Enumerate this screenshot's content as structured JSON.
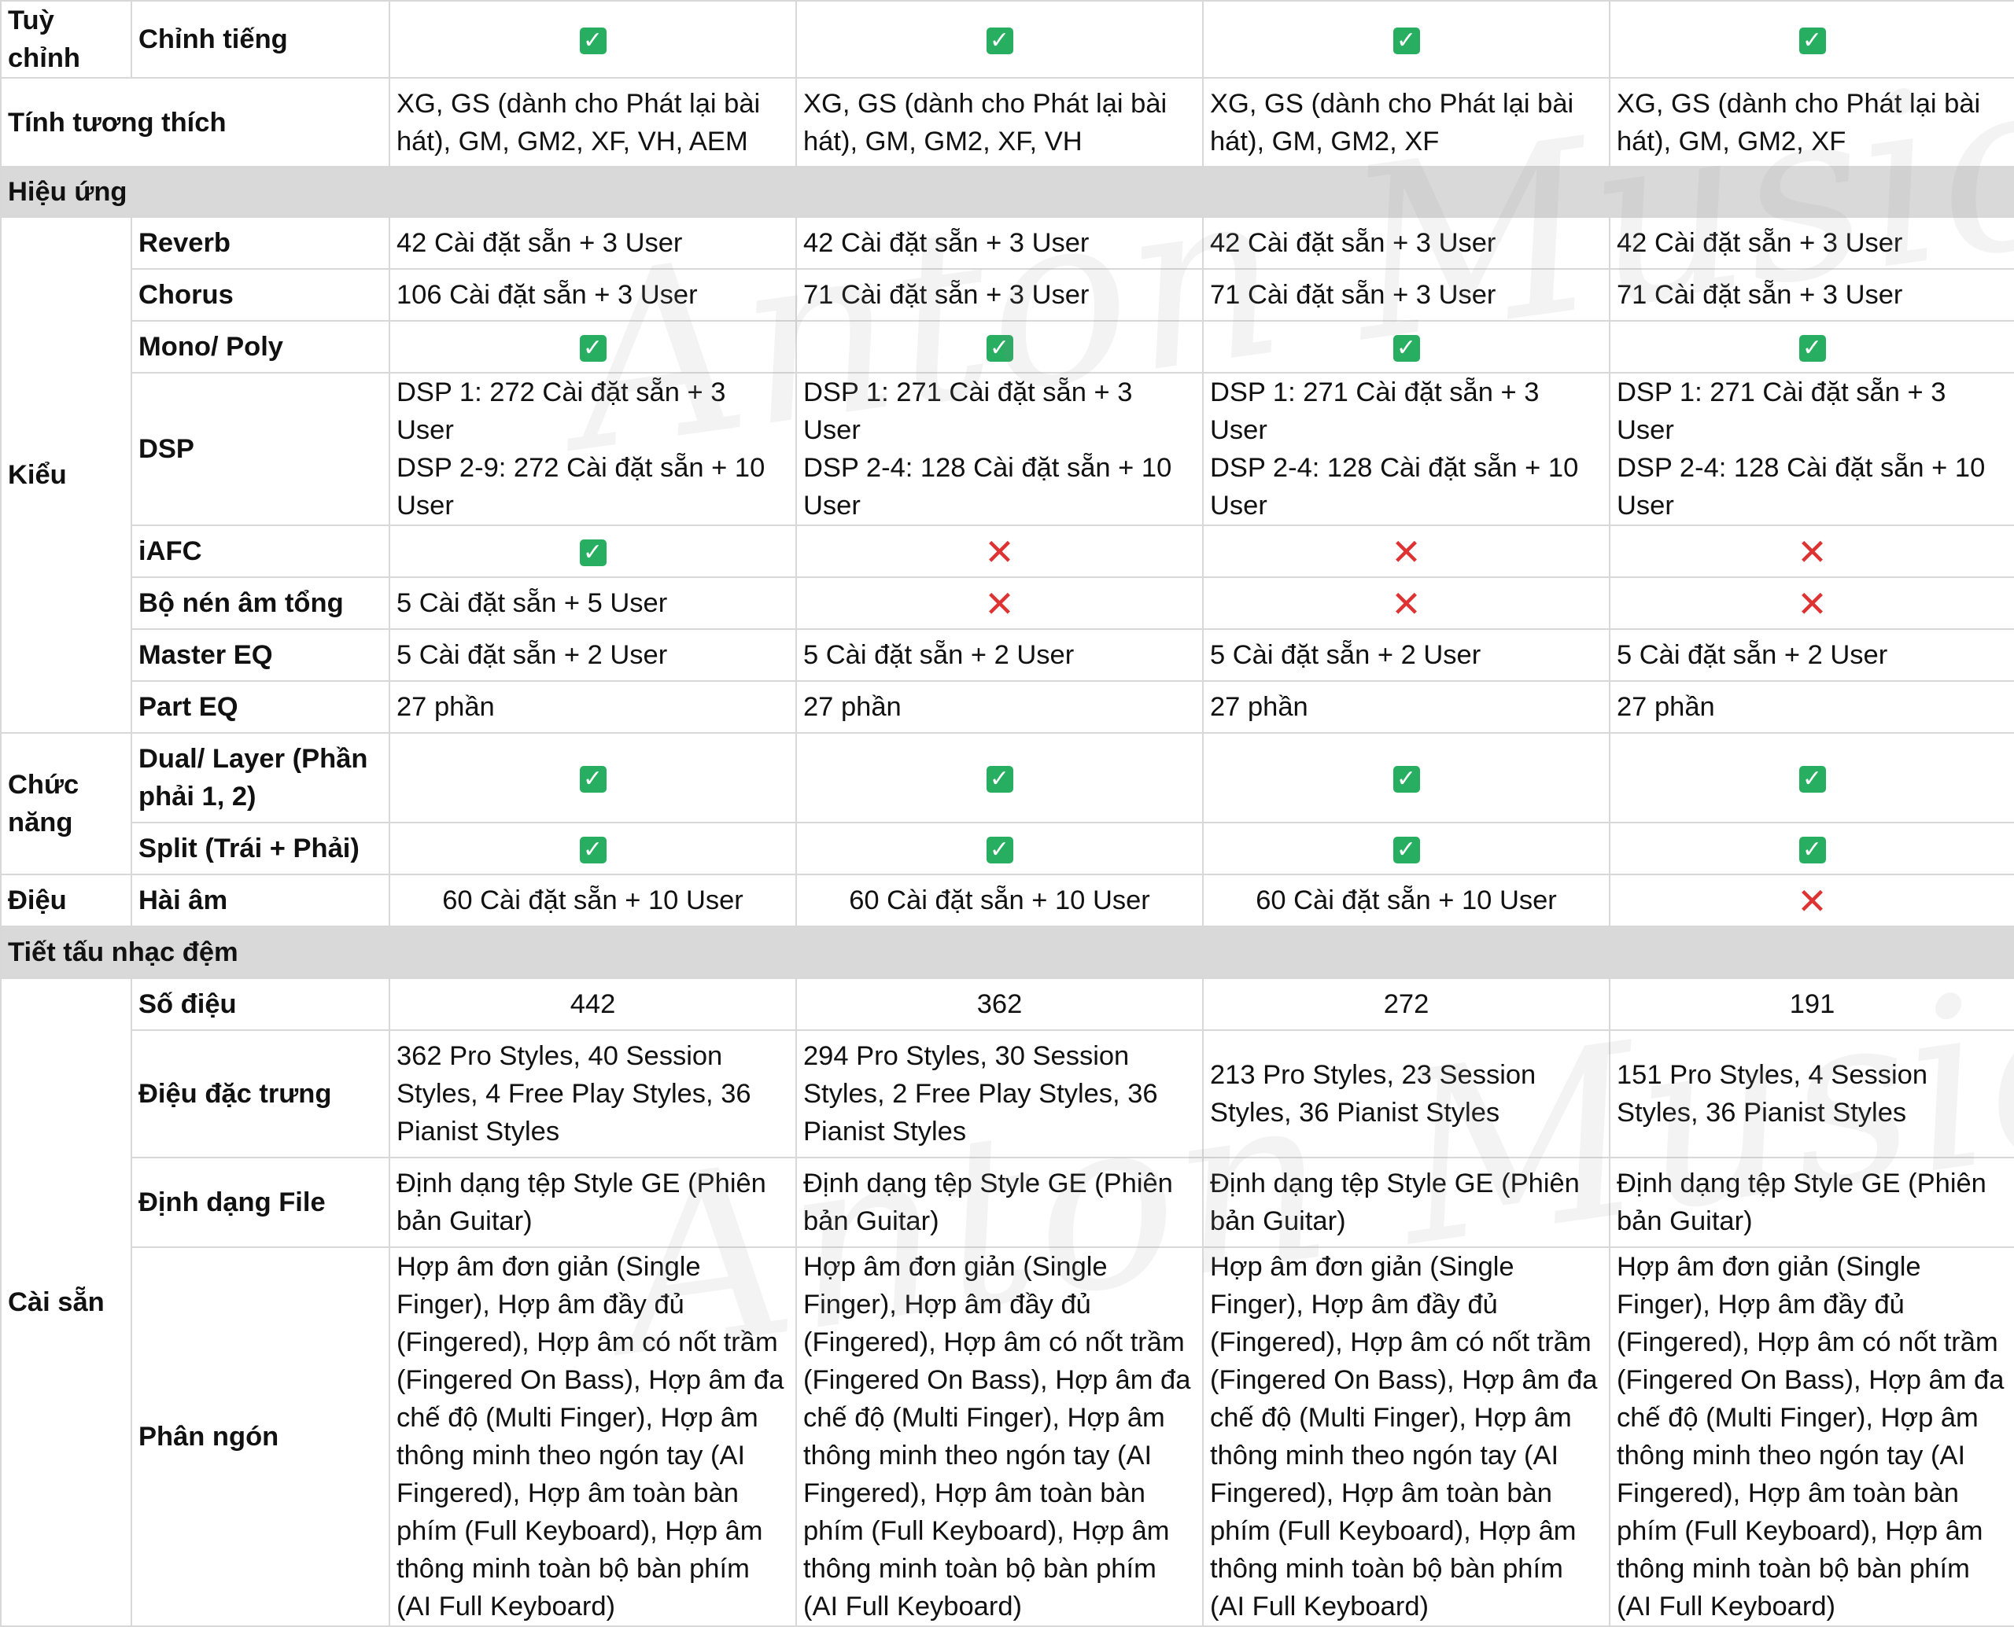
{
  "colors": {
    "check": "#27ae60",
    "cross": "#dd3333",
    "section_bg": "#d9d9d9",
    "border": "#d8d8d8"
  },
  "icons": {
    "check": "check-icon",
    "cross": "cross-icon",
    "check_glyph": "✓",
    "cross_glyph": "✕"
  },
  "watermark": {
    "line1": "Anton Music",
    "line2": "Anton Music"
  },
  "rows": {
    "tuy_chinh": {
      "cat": "Tuỳ chỉnh",
      "label": "Chỉnh tiếng"
    },
    "tinh_tuong_thich": {
      "label": "Tính tương thích",
      "values": [
        "XG, GS (dành cho Phát lại bài hát), GM, GM2, XF, VH, AEM",
        "XG, GS (dành cho Phát lại bài hát), GM, GM2, XF, VH",
        "XG, GS (dành cho Phát lại bài hát), GM, GM2, XF",
        "XG, GS (dành cho Phát lại bài hát), GM, GM2, XF"
      ]
    },
    "section_hieu_ung": "Hiệu ứng",
    "kieu": "Kiểu",
    "reverb": {
      "label": "Reverb",
      "values": [
        "42 Cài đặt sẵn + 3 User",
        "42 Cài đặt sẵn + 3 User",
        "42 Cài đặt sẵn + 3 User",
        "42 Cài đặt sẵn + 3 User"
      ]
    },
    "chorus": {
      "label": "Chorus",
      "values": [
        "106 Cài đặt sẵn + 3 User",
        "71 Cài đặt sẵn + 3 User",
        "71 Cài đặt sẵn + 3 User",
        "71 Cài đặt sẵn + 3 User"
      ]
    },
    "mono_poly": {
      "label": "Mono/ Poly"
    },
    "dsp": {
      "label": "DSP",
      "values": [
        {
          "l1": "DSP 1: 272 Cài đặt sẵn + 3 User",
          "l2": "DSP 2-9: 272 Cài đặt sẵn + 10 User"
        },
        {
          "l1": "DSP 1: 271 Cài đặt sẵn + 3 User",
          "l2": "DSP 2-4: 128 Cài đặt sẵn + 10 User"
        },
        {
          "l1": "DSP 1: 271 Cài đặt sẵn + 3 User",
          "l2": "DSP 2-4: 128 Cài đặt sẵn + 10 User"
        },
        {
          "l1": "DSP 1: 271 Cài đặt sẵn + 3 User",
          "l2": "DSP 2-4: 128 Cài đặt sẵn + 10 User"
        }
      ]
    },
    "iafc": {
      "label": "iAFC"
    },
    "bo_nen": {
      "label": "Bộ nén âm tổng",
      "value0": "5 Cài đặt sẵn + 5 User"
    },
    "master_eq": {
      "label": "Master EQ",
      "values": [
        "5 Cài đặt sẵn + 2 User",
        "5 Cài đặt sẵn + 2 User",
        "5 Cài đặt sẵn + 2 User",
        "5 Cài đặt sẵn + 2 User"
      ]
    },
    "part_eq": {
      "label": "Part EQ",
      "values": [
        "27 phần",
        "27 phần",
        "27 phần",
        "27 phần"
      ]
    },
    "chuc_nang": "Chức năng",
    "dual_layer": {
      "label": "Dual/ Layer (Phần phải 1, 2)"
    },
    "split": {
      "label": "Split (Trái + Phải)"
    },
    "dieu": {
      "cat": "Điệu",
      "label": "Hài âm",
      "values": [
        "60 Cài đặt sẵn + 10 User",
        "60 Cài đặt sẵn + 10 User",
        "60 Cài đặt sẵn + 10 User"
      ]
    },
    "section_tiet_tau": "Tiết tấu nhạc đệm",
    "cai_san": "Cài sẵn",
    "so_dieu": {
      "label": "Số điệu",
      "values": [
        "442",
        "362",
        "272",
        "191"
      ]
    },
    "dieu_dac_trung": {
      "label": "Điệu đặc trưng",
      "values": [
        "362 Pro Styles, 40 Session Styles, 4 Free Play Styles, 36 Pianist Styles",
        "294 Pro Styles, 30 Session Styles, 2 Free Play Styles, 36 Pianist Styles",
        "213 Pro Styles, 23 Session Styles, 36 Pianist Styles",
        "151 Pro Styles, 4 Session Styles, 36 Pianist Styles"
      ]
    },
    "dinh_dang_file": {
      "label": "Định dạng File",
      "values": [
        "Định dạng tệp Style GE (Phiên bản Guitar)",
        "Định dạng tệp Style GE (Phiên bản Guitar)",
        "Định dạng tệp Style GE (Phiên bản Guitar)",
        "Định dạng tệp Style GE (Phiên bản Guitar)"
      ]
    },
    "phan_ngon": {
      "label": "Phân ngón",
      "values": [
        "Hợp âm đơn giản (Single Finger), Hợp âm đầy đủ (Fingered), Hợp âm có nốt trầm (Fingered On Bass), Hợp âm đa chế độ (Multi Finger), Hợp âm thông minh theo ngón tay (AI Fingered), Hợp âm toàn bàn phím (Full Keyboard), Hợp âm thông minh toàn bộ bàn phím (AI Full Keyboard)",
        "Hợp âm đơn giản (Single Finger), Hợp âm đầy đủ (Fingered), Hợp âm có nốt trầm (Fingered On Bass), Hợp âm đa chế độ (Multi Finger), Hợp âm thông minh theo ngón tay (AI Fingered), Hợp âm toàn bàn phím (Full Keyboard), Hợp âm thông minh toàn bộ bàn phím (AI Full Keyboard)",
        "Hợp âm đơn giản (Single Finger), Hợp âm đầy đủ (Fingered), Hợp âm có nốt trầm (Fingered On Bass), Hợp âm đa chế độ (Multi Finger), Hợp âm thông minh theo ngón tay (AI Fingered), Hợp âm toàn bàn phím (Full Keyboard), Hợp âm thông minh toàn bộ bàn phím (AI Full Keyboard)",
        "Hợp âm đơn giản (Single Finger), Hợp âm đầy đủ (Fingered), Hợp âm có nốt trầm (Fingered On Bass), Hợp âm đa chế độ (Multi Finger), Hợp âm thông minh theo ngón tay (AI Fingered), Hợp âm toàn bàn phím (Full Keyboard), Hợp âm thông minh toàn bộ bàn phím (AI Full Keyboard)"
      ]
    }
  }
}
